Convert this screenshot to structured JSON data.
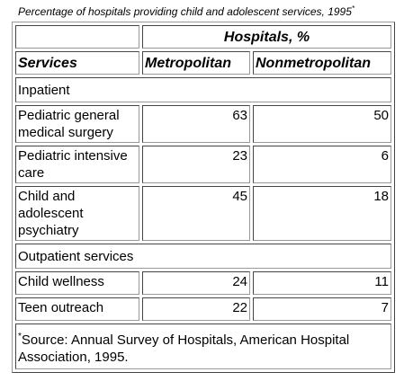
{
  "caption": {
    "text": "Percentage of hospitals providing child and adolescent services, 1995",
    "marker": "*"
  },
  "table": {
    "group_header": "Hospitals, %",
    "columns": [
      "Services",
      "Metropolitan",
      "Nonmetropolitan"
    ],
    "sections": [
      {
        "title": "Inpatient",
        "rows": [
          {
            "service": "Pediatric general medical surgery",
            "values": [
              63,
              50
            ]
          },
          {
            "service": "Pediatric intensive care",
            "values": [
              23,
              6
            ]
          },
          {
            "service": "Child and adolescent psychiatry",
            "values": [
              45,
              18
            ]
          }
        ]
      },
      {
        "title": "Outpatient services",
        "rows": [
          {
            "service": "Child wellness",
            "values": [
              24,
              11
            ]
          },
          {
            "service": "Teen outreach",
            "values": [
              22,
              7
            ]
          }
        ]
      }
    ]
  },
  "footnote": {
    "marker": "*",
    "text": "Source: Annual Survey of Hospitals, American Hospital Association, 1995."
  }
}
